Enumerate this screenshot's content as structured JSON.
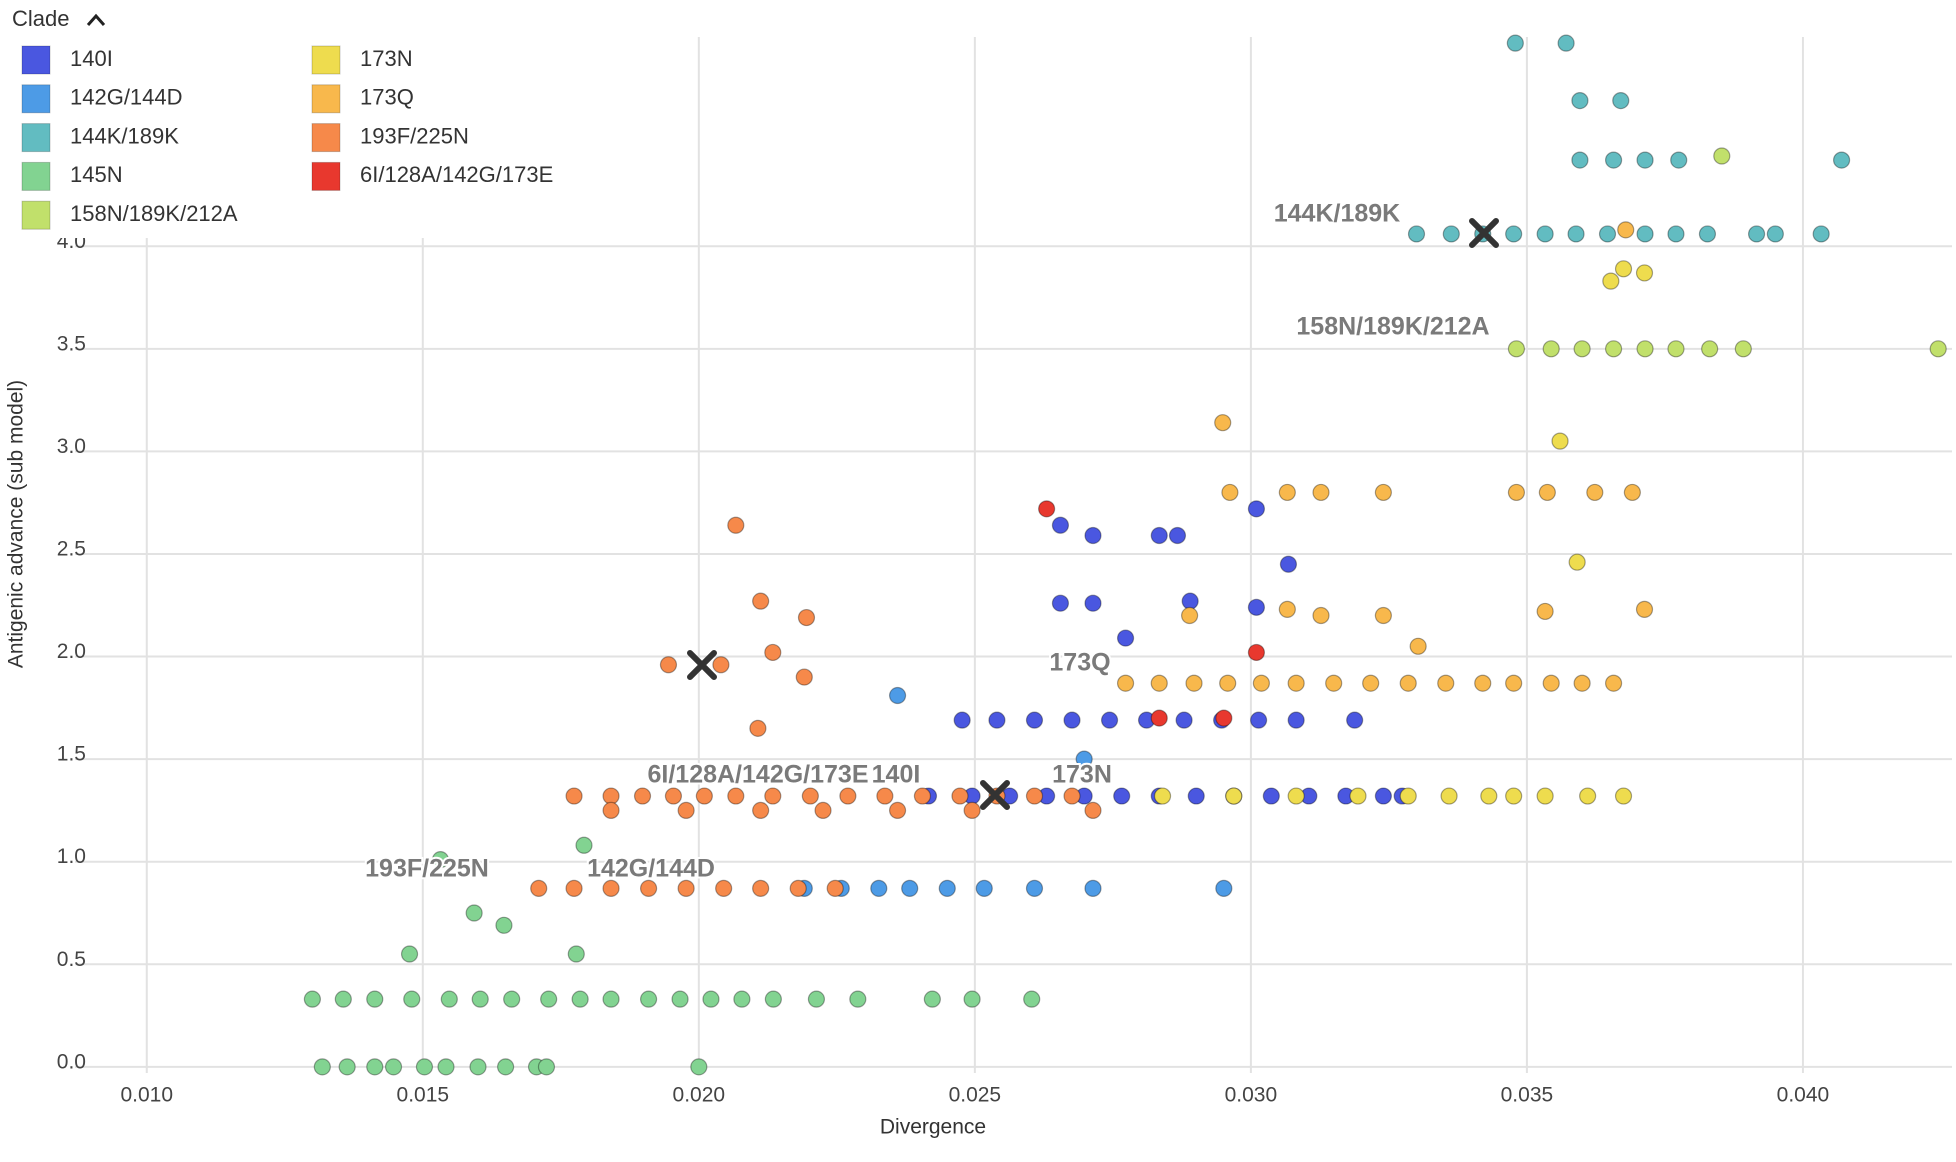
{
  "chart_data": {
    "type": "scatter",
    "legend_title": "Clade",
    "x_label": "Divergence",
    "y_label": "Antigenic advance (sub model)",
    "xlim": [
      0.0087,
      0.0427
    ],
    "ylim": [
      -0.03,
      5.02
    ],
    "xticks": [
      {
        "value": 0.01,
        "label": "0.010"
      },
      {
        "value": 0.015,
        "label": "0.015"
      },
      {
        "value": 0.02,
        "label": "0.020"
      },
      {
        "value": 0.025,
        "label": "0.025"
      },
      {
        "value": 0.03,
        "label": "0.030"
      },
      {
        "value": 0.035,
        "label": "0.035"
      },
      {
        "value": 0.04,
        "label": "0.040"
      }
    ],
    "yticks": [
      {
        "value": 0,
        "label": "0.0"
      },
      0.5,
      {
        "value": 1,
        "label": "1.0"
      },
      1.5,
      {
        "value": 2,
        "label": "2.0"
      },
      2.5,
      {
        "value": 3,
        "label": "3.0"
      },
      3.5,
      {
        "value": 4,
        "label": "4.0"
      }
    ],
    "grid": true,
    "annotations": [
      "144K/189K",
      "158N/189K/212A",
      "173Q",
      "6I/128A/142G/173E",
      "140I",
      "173N",
      "193F/225N",
      "142G/144D"
    ],
    "series": [
      {
        "name": "140I",
        "color": "#4a57e0",
        "x": [
          0.02416,
          0.02495,
          0.02563,
          0.0263,
          0.02698,
          0.02766,
          0.02834,
          0.02901,
          0.02969,
          0.03037,
          0.03105,
          0.03172,
          0.0324,
          0.03274,
          0.02477,
          0.0254,
          0.02608,
          0.02676,
          0.02744,
          0.02811,
          0.02879,
          0.02947,
          0.03014,
          0.03082,
          0.03188,
          0.02655,
          0.02714,
          0.02834,
          0.02867,
          0.02655,
          0.02714,
          0.0301,
          0.03068,
          0.0289,
          0.0301,
          0.02773
        ],
        "values": [
          1.32,
          1.32,
          1.32,
          1.32,
          1.32,
          1.32,
          1.32,
          1.32,
          1.32,
          1.32,
          1.32,
          1.32,
          1.32,
          1.32,
          1.69,
          1.69,
          1.69,
          1.69,
          1.69,
          1.69,
          1.69,
          1.69,
          1.69,
          1.69,
          1.69,
          2.64,
          2.59,
          2.59,
          2.59,
          2.26,
          2.26,
          2.72,
          2.45,
          2.27,
          2.24,
          2.09
        ]
      },
      {
        "name": "142G/144D",
        "color": "#4d9be6",
        "x": [
          0.02191,
          0.02258,
          0.02326,
          0.02382,
          0.0245,
          0.02517,
          0.02608,
          0.02714,
          0.02951,
          0.0236,
          0.02698
        ],
        "values": [
          0.87,
          0.87,
          0.87,
          0.87,
          0.87,
          0.87,
          0.87,
          0.87,
          0.87,
          1.81,
          1.5
        ]
      },
      {
        "name": "144K/189K",
        "color": "#62bcc1",
        "x": [
          0.033,
          0.03363,
          0.0342,
          0.03476,
          0.03533,
          0.03589,
          0.03646,
          0.03714,
          0.0377,
          0.03827,
          0.03916,
          0.0395,
          0.04033,
          0.03596,
          0.03657,
          0.03714,
          0.03775,
          0.0407,
          0.03479,
          0.03571,
          0.03596,
          0.0367
        ],
        "values": [
          4.06,
          4.06,
          4.06,
          4.06,
          4.06,
          4.06,
          4.06,
          4.06,
          4.06,
          4.06,
          4.06,
          4.06,
          4.06,
          4.42,
          4.42,
          4.42,
          4.42,
          4.42,
          4.99,
          4.99,
          4.71,
          4.71
        ]
      },
      {
        "name": "145N",
        "color": "#82d391",
        "x": [
          0.01318,
          0.01363,
          0.01413,
          0.01447,
          0.01503,
          0.01542,
          0.016,
          0.0165,
          0.01706,
          0.01724,
          0.02,
          0.013,
          0.01356,
          0.01413,
          0.0148,
          0.01548,
          0.01604,
          0.01661,
          0.01728,
          0.01785,
          0.01841,
          0.01909,
          0.01966,
          0.02022,
          0.02078,
          0.02135,
          0.02213,
          0.02288,
          0.02423,
          0.02495,
          0.02603,
          0.01532,
          0.01792,
          0.01593,
          0.01647,
          0.01778,
          0.01476
        ],
        "values": [
          0,
          0,
          0,
          0,
          0,
          0,
          0,
          0,
          0,
          0,
          0,
          0.33,
          0.33,
          0.33,
          0.33,
          0.33,
          0.33,
          0.33,
          0.33,
          0.33,
          0.33,
          0.33,
          0.33,
          0.33,
          0.33,
          0.33,
          0.33,
          0.33,
          0.33,
          0.33,
          0.33,
          1.01,
          1.08,
          0.75,
          0.69,
          0.55,
          0.55
        ]
      },
      {
        "name": "158N/189K/212A",
        "color": "#c1e06b",
        "x": [
          0.03481,
          0.03544,
          0.036,
          0.03657,
          0.03714,
          0.0377,
          0.03831,
          0.03892,
          0.04245,
          0.03853
        ],
        "values": [
          3.5,
          3.5,
          3.5,
          3.5,
          3.5,
          3.5,
          3.5,
          3.5,
          3.5,
          4.44
        ]
      },
      {
        "name": "173N",
        "color": "#eedc4e",
        "x": [
          0.0284,
          0.02969,
          0.03082,
          0.03194,
          0.03285,
          0.03359,
          0.03431,
          0.03476,
          0.03533,
          0.0361,
          0.03675,
          0.03591,
          0.0356,
          0.03675,
          0.03713,
          0.03652
        ],
        "values": [
          1.32,
          1.32,
          1.32,
          1.32,
          1.32,
          1.32,
          1.32,
          1.32,
          1.32,
          1.32,
          1.32,
          2.46,
          3.05,
          3.89,
          3.87,
          3.83
        ]
      },
      {
        "name": "173Q",
        "color": "#f8b84c",
        "x": [
          0.02773,
          0.02834,
          0.02897,
          0.02958,
          0.03019,
          0.03082,
          0.0315,
          0.03217,
          0.03285,
          0.03353,
          0.0342,
          0.03476,
          0.03544,
          0.036,
          0.03657,
          0.02949,
          0.02962,
          0.03066,
          0.03127,
          0.0324,
          0.03481,
          0.03537,
          0.03623,
          0.03691,
          0.02889,
          0.03066,
          0.03127,
          0.0324,
          0.03303,
          0.03533,
          0.03713,
          0.03679
        ],
        "values": [
          1.87,
          1.87,
          1.87,
          1.87,
          1.87,
          1.87,
          1.87,
          1.87,
          1.87,
          1.87,
          1.87,
          1.87,
          1.87,
          1.87,
          1.87,
          3.14,
          2.8,
          2.8,
          2.8,
          2.8,
          2.8,
          2.8,
          2.8,
          2.8,
          2.2,
          2.23,
          2.2,
          2.2,
          2.05,
          2.22,
          2.23,
          4.08
        ]
      },
      {
        "name": "193F/225N",
        "color": "#f6894a",
        "x": [
          0.0171,
          0.01774,
          0.01841,
          0.01909,
          0.01977,
          0.02045,
          0.02112,
          0.0218,
          0.02247,
          0.01774,
          0.01841,
          0.01898,
          0.01954,
          0.0201,
          0.02067,
          0.02134,
          0.02202,
          0.0227,
          0.02337,
          0.02405,
          0.02473,
          0.0254,
          0.02608,
          0.02676,
          0.01841,
          0.01977,
          0.02112,
          0.02225,
          0.0236,
          0.02495,
          0.02714,
          0.02067,
          0.02112,
          0.02195,
          0.02134,
          0.02191,
          0.02107,
          0.0204,
          0.01945
        ],
        "values": [
          0.87,
          0.87,
          0.87,
          0.87,
          0.87,
          0.87,
          0.87,
          0.87,
          0.87,
          1.32,
          1.32,
          1.32,
          1.32,
          1.32,
          1.32,
          1.32,
          1.32,
          1.32,
          1.32,
          1.32,
          1.32,
          1.32,
          1.32,
          1.32,
          1.25,
          1.25,
          1.25,
          1.25,
          1.25,
          1.25,
          1.25,
          2.64,
          2.27,
          2.19,
          2.02,
          1.9,
          1.65,
          1.96,
          1.96
        ]
      },
      {
        "name": "6I/128A/142G/173E",
        "color": "#e8382e",
        "x": [
          0.0263,
          0.0301,
          0.02834,
          0.02951
        ],
        "values": [
          2.72,
          2.02,
          1.7,
          1.7
        ]
      }
    ]
  }
}
